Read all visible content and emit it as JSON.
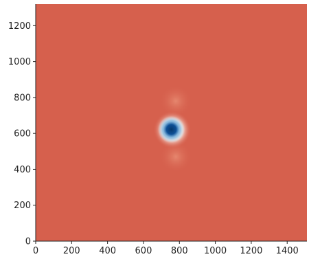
{
  "chart_data": {
    "type": "heatmap",
    "title": "",
    "xlabel": "",
    "ylabel": "",
    "xlim": [
      0,
      1510
    ],
    "ylim": [
      0,
      1320
    ],
    "x_ticks": [
      0,
      200,
      400,
      600,
      800,
      1000,
      1200,
      1400
    ],
    "y_ticks": [
      0,
      200,
      400,
      600,
      800,
      1000,
      1200
    ],
    "x_tick_labels": [
      "0",
      "200",
      "400",
      "600",
      "800",
      "1000",
      "1200",
      "1400"
    ],
    "y_tick_labels": [
      "0",
      "200",
      "400",
      "600",
      "800",
      "1000",
      "1200"
    ],
    "colormap": "RdBu",
    "background_color": "#d6604d",
    "features": [
      {
        "kind": "dark-blue-core",
        "center": [
          755,
          622
        ],
        "radius": 45,
        "color": "#0b4f93"
      },
      {
        "kind": "blue-ring",
        "center": [
          755,
          622
        ],
        "radius": 75,
        "color": "#6aa7d6"
      },
      {
        "kind": "white-halo",
        "center": [
          760,
          620
        ],
        "radius": 105,
        "color": "#fbf6f2"
      },
      {
        "kind": "light-spot",
        "center": [
          780,
          780
        ],
        "radius": 90,
        "color": "#f09e82"
      },
      {
        "kind": "light-spot",
        "center": [
          780,
          470
        ],
        "radius": 90,
        "color": "#f09e82"
      }
    ],
    "grid": false,
    "legend": "none"
  }
}
